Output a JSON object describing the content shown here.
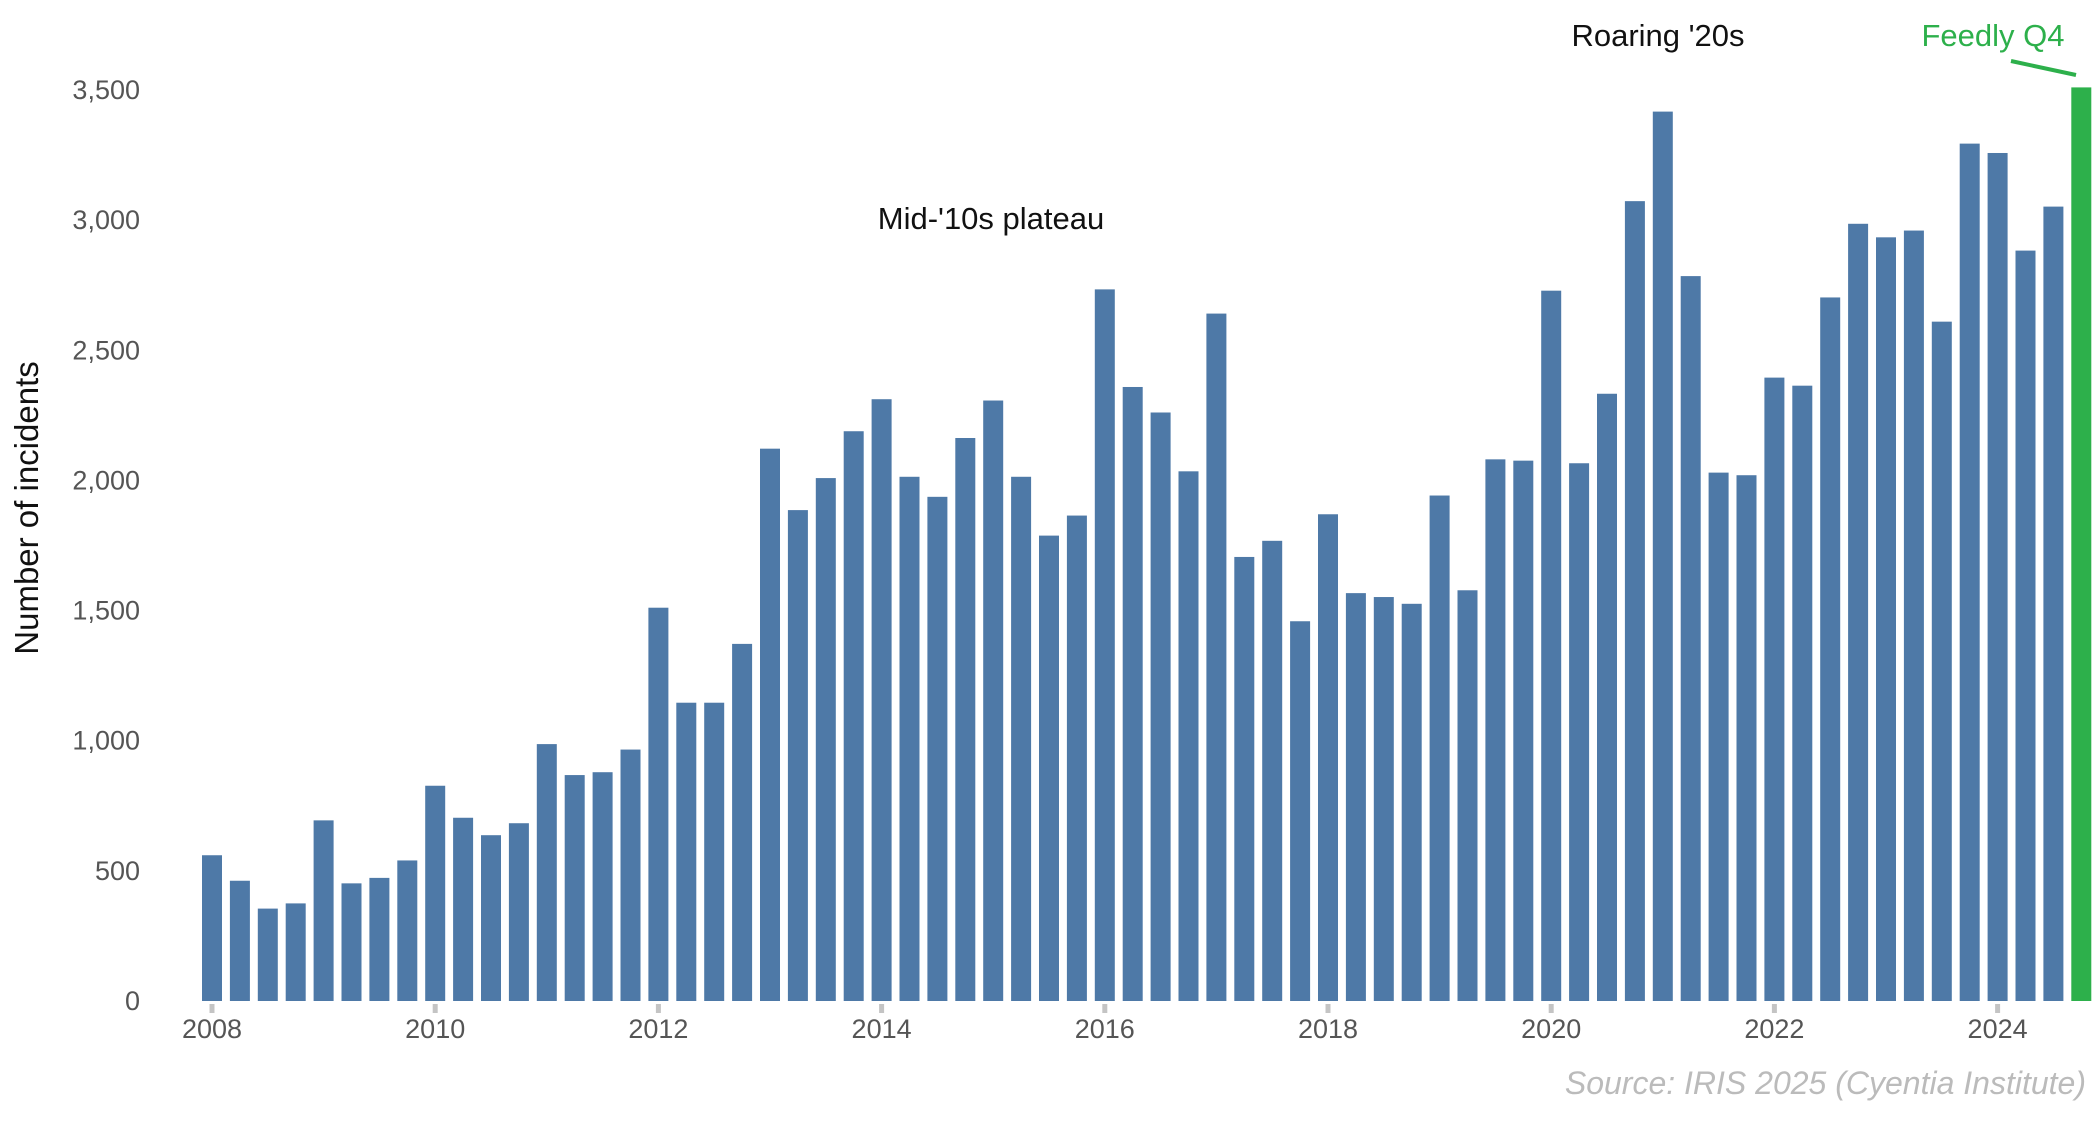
{
  "chart_data": {
    "type": "bar",
    "title": "",
    "xlabel": "",
    "ylabel": "Number of incidents",
    "ylim": [
      0,
      3500
    ],
    "yticks": [
      0,
      500,
      1000,
      1500,
      2000,
      2500,
      3000,
      3500
    ],
    "ytick_labels": [
      "0",
      "500",
      "1,000",
      "1,500",
      "2,000",
      "2,500",
      "3,000",
      "3,500"
    ],
    "xtick_labels": [
      "2008",
      "2010",
      "2012",
      "2014",
      "2016",
      "2018",
      "2020",
      "2022",
      "2024"
    ],
    "x_start_year": 2008,
    "periods_per_year": 4,
    "grid": false,
    "values": [
      560,
      462,
      355,
      375,
      694,
      452,
      473,
      540,
      827,
      704,
      637,
      683,
      987,
      868,
      879,
      966,
      1511,
      1146,
      1146,
      1372,
      2122,
      1886,
      2009,
      2189,
      2312,
      2014,
      1937,
      2163,
      2307,
      2014,
      1788,
      1865,
      2734,
      2359,
      2261,
      2035,
      2641,
      1706,
      1768,
      1459,
      1870,
      1567,
      1552,
      1526,
      1942,
      1578,
      2081,
      2076,
      2729,
      2066,
      2333,
      3073,
      3417,
      2785,
      2030,
      2020,
      2395,
      2364,
      2703,
      2986,
      2934,
      2960,
      2610,
      3294,
      3258,
      2883,
      3052,
      3510
    ],
    "highlight_index": 67,
    "colors": {
      "bar": "#4e79a7",
      "highlight": "#2db04b",
      "tick_mark": "#c4c4c4"
    },
    "annotations": [
      {
        "text": "Mid-'10s plateau"
      },
      {
        "text": "Roaring '20s"
      },
      {
        "text": "Feedly Q4"
      }
    ],
    "source": "Source: IRIS 2025 (Cyentia Institute)"
  }
}
